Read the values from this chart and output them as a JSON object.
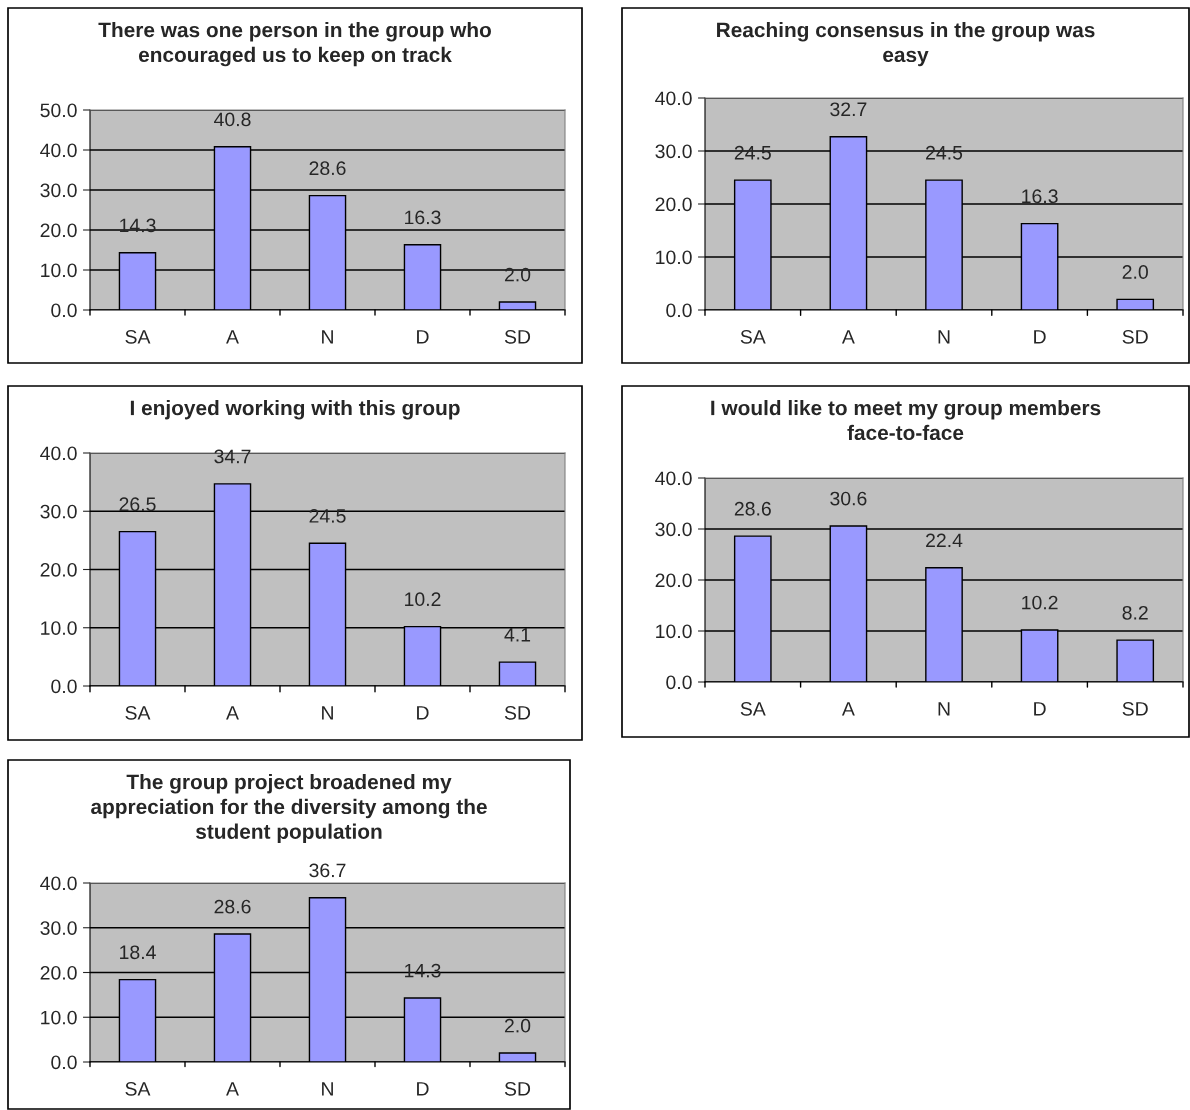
{
  "chart_data": [
    {
      "type": "bar",
      "title": "There was one person in the group who encouraged us to keep on track",
      "categories": [
        "SA",
        "A",
        "N",
        "D",
        "SD"
      ],
      "values": [
        14.3,
        40.8,
        28.6,
        16.3,
        2.0
      ],
      "value_labels": [
        "14.3",
        "40.8",
        "28.6",
        "16.3",
        "2.0"
      ],
      "color": "#9999ff",
      "ylim": [
        0,
        50
      ],
      "yticks": [
        {
          "value": 0,
          "label": "0.0"
        },
        {
          "value": 10,
          "label": "10.0"
        },
        {
          "value": 20,
          "label": "20.0"
        },
        {
          "value": 30,
          "label": "30.0"
        },
        {
          "value": 40,
          "label": "40.0"
        },
        {
          "value": 50,
          "label": "50.0"
        }
      ],
      "grid": "y"
    },
    {
      "type": "bar",
      "title": "Reaching consensus in the group was easy",
      "categories": [
        "SA",
        "A",
        "N",
        "D",
        "SD"
      ],
      "values": [
        24.5,
        32.7,
        24.5,
        16.3,
        2.0
      ],
      "value_labels": [
        "24.5",
        "32.7",
        "24.5",
        "16.3",
        "2.0"
      ],
      "color": "#9999ff",
      "ylim": [
        0,
        40
      ],
      "yticks": [
        {
          "value": 0,
          "label": "0.0"
        },
        {
          "value": 10,
          "label": "10.0"
        },
        {
          "value": 20,
          "label": "20.0"
        },
        {
          "value": 30,
          "label": "30.0"
        },
        {
          "value": 40,
          "label": "40.0"
        }
      ],
      "grid": "y"
    },
    {
      "type": "bar",
      "title": "I enjoyed working with this group",
      "categories": [
        "SA",
        "A",
        "N",
        "D",
        "SD"
      ],
      "values": [
        26.5,
        34.7,
        24.5,
        10.2,
        4.1
      ],
      "value_labels": [
        "26.5",
        "34.7",
        "24.5",
        "10.2",
        "4.1"
      ],
      "color": "#9999ff",
      "ylim": [
        0,
        40
      ],
      "yticks": [
        {
          "value": 0,
          "label": "0.0"
        },
        {
          "value": 10,
          "label": "10.0"
        },
        {
          "value": 20,
          "label": "20.0"
        },
        {
          "value": 30,
          "label": "30.0"
        },
        {
          "value": 40,
          "label": "40.0"
        }
      ],
      "grid": "y"
    },
    {
      "type": "bar",
      "title": "I would like to meet my group members face-to-face",
      "categories": [
        "SA",
        "A",
        "N",
        "D",
        "SD"
      ],
      "values": [
        28.6,
        30.6,
        22.4,
        10.2,
        8.2
      ],
      "value_labels": [
        "28.6",
        "30.6",
        "22.4",
        "10.2",
        "8.2"
      ],
      "color": "#9999ff",
      "ylim": [
        0,
        40
      ],
      "yticks": [
        {
          "value": 0,
          "label": "0.0"
        },
        {
          "value": 10,
          "label": "10.0"
        },
        {
          "value": 20,
          "label": "20.0"
        },
        {
          "value": 30,
          "label": "30.0"
        },
        {
          "value": 40,
          "label": "40.0"
        }
      ],
      "grid": "y"
    },
    {
      "type": "bar",
      "title": "The group project broadened my appreciation for the diversity among the student population",
      "categories": [
        "SA",
        "A",
        "N",
        "D",
        "SD"
      ],
      "values": [
        18.4,
        28.6,
        36.7,
        14.3,
        2.0
      ],
      "value_labels": [
        "18.4",
        "28.6",
        "36.7",
        "14.3",
        "2.0"
      ],
      "color": "#9999ff",
      "ylim": [
        0,
        40
      ],
      "yticks": [
        {
          "value": 0,
          "label": "0.0"
        },
        {
          "value": 10,
          "label": "10.0"
        },
        {
          "value": 20,
          "label": "20.0"
        },
        {
          "value": 30,
          "label": "30.0"
        },
        {
          "value": 40,
          "label": "40.0"
        }
      ],
      "grid": "y"
    }
  ]
}
